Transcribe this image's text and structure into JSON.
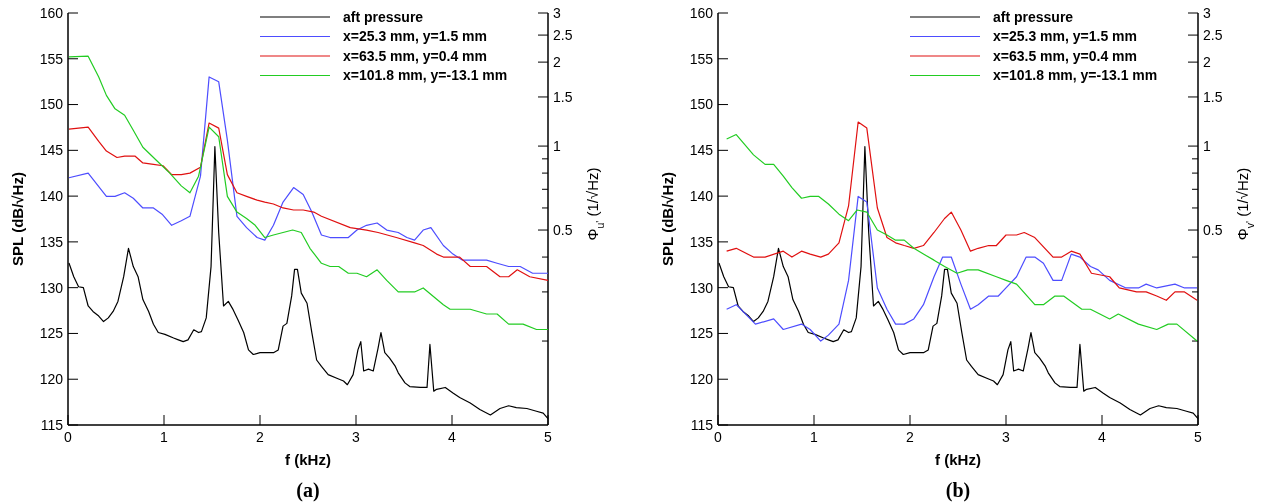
{
  "chart_data": [
    {
      "type": "line",
      "xlabel": "f (kHz)",
      "ylabel": "SPL (dB/√Hz)",
      "y2label": "Φ$_{u'}$ (1/√Hz)",
      "annotations": [
        "(a)"
      ],
      "xlim": [
        0,
        5
      ],
      "xticks": [
        0,
        1,
        2,
        3,
        4,
        5
      ],
      "ylim": [
        115,
        160
      ],
      "yticks": [
        115,
        120,
        125,
        130,
        135,
        140,
        145,
        150,
        155,
        160
      ],
      "y2lim": [
        0.1,
        3
      ],
      "y2ticks": [
        {
          "value": 0.2,
          "label": null
        },
        {
          "value": 0.3,
          "label": null
        },
        {
          "value": 0.4,
          "label": null
        },
        0.5,
        {
          "value": 0.6,
          "label": null
        },
        {
          "value": 0.7,
          "label": null
        },
        {
          "value": 0.8,
          "label": null
        },
        {
          "value": 0.9,
          "label": null
        },
        1,
        1.5,
        2,
        2.5,
        3
      ],
      "log": "y2",
      "legend": "top right",
      "series": [
        {
          "name": "aft pressure",
          "color": "#000000",
          "x": [
            0.01,
            0.06,
            0.11,
            0.16,
            0.21,
            0.26,
            0.32,
            0.37,
            0.42,
            0.47,
            0.52,
            0.58,
            0.63,
            0.68,
            0.73,
            0.78,
            0.84,
            0.89,
            0.94,
            1.01,
            1.1,
            1.15,
            1.2,
            1.25,
            1.31,
            1.36,
            1.39,
            1.44,
            1.49,
            1.53,
            1.57,
            1.62,
            1.67,
            1.72,
            1.77,
            1.83,
            1.88,
            1.93,
            2.0,
            2.07,
            2.14,
            2.19,
            2.24,
            2.28,
            2.33,
            2.36,
            2.39,
            2.43,
            2.49,
            2.54,
            2.59,
            2.64,
            2.71,
            2.8,
            2.87,
            2.91,
            2.97,
            3.02,
            3.05,
            3.08,
            3.13,
            3.18,
            3.23,
            3.26,
            3.3,
            3.35,
            3.41,
            3.44,
            3.51,
            3.56,
            3.67,
            3.74,
            3.77,
            3.81,
            3.84,
            3.93,
            4.01,
            4.08,
            4.19,
            4.29,
            4.4,
            4.5,
            4.59,
            4.67,
            4.78,
            4.88,
            4.95,
            5.0
          ],
          "values": [
            132.7,
            131.2,
            130.1,
            130.0,
            128.0,
            127.4,
            126.9,
            126.3,
            126.7,
            127.4,
            128.5,
            131.2,
            134.3,
            132.3,
            131.2,
            128.7,
            127.4,
            126.0,
            125.1,
            124.9,
            124.5,
            124.3,
            124.1,
            124.3,
            125.4,
            125.1,
            125.2,
            126.7,
            132.3,
            145.4,
            136.0,
            128.0,
            128.5,
            127.6,
            126.5,
            125.1,
            123.2,
            122.7,
            122.9,
            122.9,
            122.9,
            123.2,
            125.8,
            126.1,
            129.1,
            132.0,
            132.0,
            129.4,
            128.3,
            125.1,
            122.1,
            121.4,
            120.5,
            120.1,
            119.8,
            119.4,
            120.5,
            123.2,
            124.1,
            120.9,
            121.1,
            120.9,
            123.4,
            125.1,
            122.9,
            122.3,
            121.4,
            120.7,
            119.6,
            119.2,
            119.1,
            119.1,
            123.8,
            118.7,
            118.9,
            119.1,
            118.5,
            118.0,
            117.4,
            116.7,
            116.1,
            116.8,
            117.1,
            116.9,
            116.8,
            116.5,
            116.3,
            115.7
          ]
        },
        {
          "name": "x=25.3 mm, y=1.5 mm",
          "color": "#4d4dff",
          "axis": "y2",
          "x": [
            0.01,
            0.21,
            0.4,
            0.49,
            0.59,
            0.68,
            0.78,
            0.89,
            0.98,
            1.08,
            1.18,
            1.27,
            1.38,
            1.47,
            1.57,
            1.66,
            1.76,
            1.86,
            1.97,
            2.05,
            2.14,
            2.24,
            2.35,
            2.45,
            2.54,
            2.64,
            2.73,
            2.83,
            2.92,
            3.01,
            3.11,
            3.22,
            3.32,
            3.44,
            3.53,
            3.61,
            3.7,
            3.78,
            3.91,
            4.01,
            4.11,
            4.36,
            4.47,
            4.59,
            4.71,
            4.84,
            5.0
          ],
          "values": [
            0.77,
            0.8,
            0.66,
            0.66,
            0.68,
            0.65,
            0.6,
            0.6,
            0.57,
            0.52,
            0.54,
            0.56,
            0.78,
            1.77,
            1.7,
            1.05,
            0.56,
            0.51,
            0.47,
            0.46,
            0.52,
            0.63,
            0.71,
            0.67,
            0.58,
            0.48,
            0.47,
            0.47,
            0.47,
            0.5,
            0.52,
            0.53,
            0.5,
            0.49,
            0.47,
            0.46,
            0.5,
            0.51,
            0.44,
            0.41,
            0.39,
            0.39,
            0.38,
            0.37,
            0.37,
            0.35,
            0.35
          ]
        },
        {
          "name": "x=63.5 mm, y=0.4 mm",
          "color": "#e01010",
          "axis": "y2",
          "x": [
            0.01,
            0.21,
            0.32,
            0.4,
            0.51,
            0.59,
            0.7,
            0.78,
            0.89,
            0.99,
            1.08,
            1.18,
            1.27,
            1.38,
            1.47,
            1.57,
            1.66,
            1.76,
            1.86,
            1.97,
            2.05,
            2.14,
            2.24,
            2.35,
            2.45,
            2.56,
            2.64,
            2.94,
            3.11,
            3.23,
            3.42,
            3.61,
            3.7,
            3.84,
            3.91,
            4.08,
            4.19,
            4.36,
            4.5,
            4.59,
            4.68,
            4.81,
            5.0
          ],
          "values": [
            1.15,
            1.17,
            1.04,
            0.96,
            0.91,
            0.92,
            0.92,
            0.87,
            0.86,
            0.85,
            0.79,
            0.79,
            0.8,
            0.84,
            1.21,
            1.16,
            0.79,
            0.68,
            0.66,
            0.64,
            0.63,
            0.62,
            0.6,
            0.59,
            0.59,
            0.58,
            0.56,
            0.51,
            0.5,
            0.49,
            0.47,
            0.45,
            0.44,
            0.41,
            0.4,
            0.4,
            0.37,
            0.37,
            0.34,
            0.34,
            0.36,
            0.34,
            0.33
          ]
        },
        {
          "name": "x=101.8 mm, y=-13.1 mm",
          "color": "#22cc22",
          "axis": "y2",
          "x": [
            0.01,
            0.21,
            0.32,
            0.4,
            0.49,
            0.59,
            0.68,
            0.78,
            0.92,
            1.06,
            1.18,
            1.27,
            1.36,
            1.47,
            1.57,
            1.66,
            1.76,
            1.86,
            1.95,
            2.05,
            2.14,
            2.24,
            2.34,
            2.43,
            2.52,
            2.64,
            2.73,
            2.82,
            2.92,
            3.01,
            3.11,
            3.22,
            3.32,
            3.44,
            3.51,
            3.61,
            3.7,
            3.91,
            3.98,
            4.19,
            4.36,
            4.47,
            4.59,
            4.74,
            4.88,
            5.0
          ],
          "values": [
            2.09,
            2.1,
            1.77,
            1.52,
            1.36,
            1.29,
            1.14,
            0.99,
            0.89,
            0.8,
            0.72,
            0.68,
            0.78,
            1.17,
            1.08,
            0.66,
            0.58,
            0.55,
            0.52,
            0.47,
            0.48,
            0.49,
            0.5,
            0.49,
            0.43,
            0.38,
            0.37,
            0.37,
            0.35,
            0.35,
            0.34,
            0.36,
            0.33,
            0.3,
            0.3,
            0.3,
            0.31,
            0.27,
            0.26,
            0.26,
            0.25,
            0.25,
            0.23,
            0.23,
            0.22,
            0.22
          ]
        }
      ]
    },
    {
      "type": "line",
      "xlabel": "f (kHz)",
      "ylabel": "SPL (dB/√Hz)",
      "y2label": "Φ$_{v'}$ (1/√Hz)",
      "annotations": [
        "(b)"
      ],
      "xlim": [
        0,
        5
      ],
      "xticks": [
        0,
        1,
        2,
        3,
        4,
        5
      ],
      "ylim": [
        115,
        160
      ],
      "yticks": [
        115,
        120,
        125,
        130,
        135,
        140,
        145,
        150,
        155,
        160
      ],
      "y2lim": [
        0.1,
        3
      ],
      "y2ticks": [
        {
          "value": 0.2,
          "label": null
        },
        {
          "value": 0.3,
          "label": null
        },
        {
          "value": 0.4,
          "label": null
        },
        0.5,
        {
          "value": 0.6,
          "label": null
        },
        {
          "value": 0.7,
          "label": null
        },
        {
          "value": 0.8,
          "label": null
        },
        {
          "value": 0.9,
          "label": null
        },
        1,
        1.5,
        2,
        2.5,
        3
      ],
      "log": "y2",
      "legend": "top right",
      "series": [
        {
          "name": "aft pressure",
          "color": "#000000",
          "x": [
            0.01,
            0.06,
            0.11,
            0.16,
            0.21,
            0.26,
            0.32,
            0.37,
            0.42,
            0.47,
            0.52,
            0.58,
            0.63,
            0.68,
            0.73,
            0.78,
            0.84,
            0.89,
            0.94,
            1.01,
            1.1,
            1.15,
            1.2,
            1.25,
            1.31,
            1.36,
            1.39,
            1.44,
            1.49,
            1.53,
            1.57,
            1.62,
            1.67,
            1.72,
            1.77,
            1.83,
            1.88,
            1.93,
            2.0,
            2.07,
            2.14,
            2.19,
            2.24,
            2.28,
            2.33,
            2.36,
            2.39,
            2.43,
            2.49,
            2.54,
            2.59,
            2.64,
            2.71,
            2.8,
            2.87,
            2.91,
            2.97,
            3.02,
            3.05,
            3.08,
            3.13,
            3.18,
            3.23,
            3.26,
            3.3,
            3.35,
            3.41,
            3.44,
            3.51,
            3.56,
            3.67,
            3.74,
            3.77,
            3.81,
            3.84,
            3.93,
            4.01,
            4.08,
            4.19,
            4.29,
            4.4,
            4.5,
            4.59,
            4.67,
            4.78,
            4.88,
            4.95,
            5.0
          ],
          "values": [
            132.7,
            131.2,
            130.1,
            130.0,
            128.0,
            127.4,
            126.9,
            126.3,
            126.7,
            127.4,
            128.5,
            131.2,
            134.3,
            132.3,
            131.2,
            128.7,
            127.4,
            126.0,
            125.1,
            124.9,
            124.5,
            124.3,
            124.1,
            124.3,
            125.4,
            125.1,
            125.2,
            126.7,
            132.3,
            145.4,
            136.0,
            128.0,
            128.5,
            127.6,
            126.5,
            125.1,
            123.2,
            122.7,
            122.9,
            122.9,
            122.9,
            123.2,
            125.8,
            126.1,
            129.1,
            132.0,
            132.0,
            129.4,
            128.3,
            125.1,
            122.1,
            121.4,
            120.5,
            120.1,
            119.8,
            119.4,
            120.5,
            123.2,
            124.1,
            120.9,
            121.1,
            120.9,
            123.4,
            125.1,
            122.9,
            122.3,
            121.4,
            120.7,
            119.6,
            119.2,
            119.1,
            119.1,
            123.8,
            118.7,
            118.9,
            119.1,
            118.5,
            118.0,
            117.4,
            116.7,
            116.1,
            116.8,
            117.1,
            116.9,
            116.8,
            116.5,
            116.3,
            115.7
          ]
        },
        {
          "name": "x=25.3 mm, y=1.5 mm",
          "color": "#4d4dff",
          "axis": "y2",
          "x": [
            0.09,
            0.19,
            0.39,
            0.58,
            0.68,
            0.87,
            0.96,
            1.07,
            1.15,
            1.26,
            1.36,
            1.46,
            1.55,
            1.66,
            1.76,
            1.85,
            1.94,
            2.04,
            2.14,
            2.25,
            2.34,
            2.43,
            2.53,
            2.63,
            2.71,
            2.82,
            2.92,
            3.0,
            3.11,
            3.21,
            3.3,
            3.39,
            3.49,
            3.58,
            3.68,
            3.77,
            3.88,
            3.96,
            4.08,
            4.25,
            4.38,
            4.46,
            4.57,
            4.76,
            4.86,
            4.99
          ],
          "values": [
            0.26,
            0.27,
            0.23,
            0.24,
            0.22,
            0.23,
            0.22,
            0.2,
            0.21,
            0.23,
            0.33,
            0.66,
            0.63,
            0.31,
            0.26,
            0.23,
            0.23,
            0.24,
            0.27,
            0.34,
            0.4,
            0.4,
            0.32,
            0.26,
            0.27,
            0.29,
            0.29,
            0.31,
            0.34,
            0.4,
            0.4,
            0.38,
            0.33,
            0.33,
            0.41,
            0.4,
            0.37,
            0.36,
            0.33,
            0.31,
            0.31,
            0.32,
            0.31,
            0.32,
            0.31,
            0.31
          ]
        },
        {
          "name": "x=63.5 mm, y=0.4 mm",
          "color": "#e01010",
          "axis": "y2",
          "x": [
            0.09,
            0.19,
            0.37,
            0.49,
            0.68,
            0.77,
            0.87,
            0.96,
            1.07,
            1.15,
            1.26,
            1.36,
            1.46,
            1.55,
            1.66,
            1.76,
            1.85,
            1.94,
            2.04,
            2.14,
            2.25,
            2.36,
            2.43,
            2.53,
            2.63,
            2.71,
            2.82,
            2.9,
            3.0,
            3.11,
            3.19,
            3.3,
            3.49,
            3.58,
            3.68,
            3.77,
            3.89,
            4.08,
            4.18,
            4.36,
            4.46,
            4.57,
            4.67,
            4.76,
            4.86,
            4.99
          ],
          "values": [
            0.42,
            0.43,
            0.4,
            0.4,
            0.42,
            0.4,
            0.42,
            0.41,
            0.4,
            0.41,
            0.45,
            0.61,
            1.22,
            1.16,
            0.6,
            0.47,
            0.45,
            0.44,
            0.43,
            0.44,
            0.49,
            0.55,
            0.58,
            0.5,
            0.42,
            0.43,
            0.44,
            0.44,
            0.48,
            0.48,
            0.49,
            0.47,
            0.4,
            0.4,
            0.42,
            0.41,
            0.35,
            0.34,
            0.31,
            0.3,
            0.3,
            0.29,
            0.28,
            0.3,
            0.3,
            0.28
          ]
        },
        {
          "name": "x=101.8 mm, y=-13.1 mm",
          "color": "#22cc22",
          "axis": "y2",
          "x": [
            0.09,
            0.19,
            0.37,
            0.49,
            0.58,
            0.68,
            0.77,
            0.87,
            0.96,
            1.05,
            1.15,
            1.26,
            1.36,
            1.45,
            1.55,
            1.66,
            1.76,
            1.85,
            1.94,
            2.04,
            2.14,
            2.25,
            2.36,
            2.49,
            2.6,
            2.71,
            2.9,
            3.0,
            3.11,
            3.3,
            3.39,
            3.51,
            3.6,
            3.79,
            3.88,
            4.08,
            4.17,
            4.38,
            4.57,
            4.69,
            4.78,
            4.99
          ],
          "values": [
            1.06,
            1.1,
            0.93,
            0.86,
            0.86,
            0.78,
            0.71,
            0.65,
            0.66,
            0.66,
            0.62,
            0.57,
            0.54,
            0.59,
            0.58,
            0.5,
            0.48,
            0.46,
            0.46,
            0.43,
            0.41,
            0.39,
            0.37,
            0.35,
            0.36,
            0.36,
            0.34,
            0.33,
            0.32,
            0.27,
            0.27,
            0.29,
            0.29,
            0.26,
            0.26,
            0.24,
            0.25,
            0.23,
            0.22,
            0.23,
            0.23,
            0.2
          ]
        }
      ]
    }
  ]
}
